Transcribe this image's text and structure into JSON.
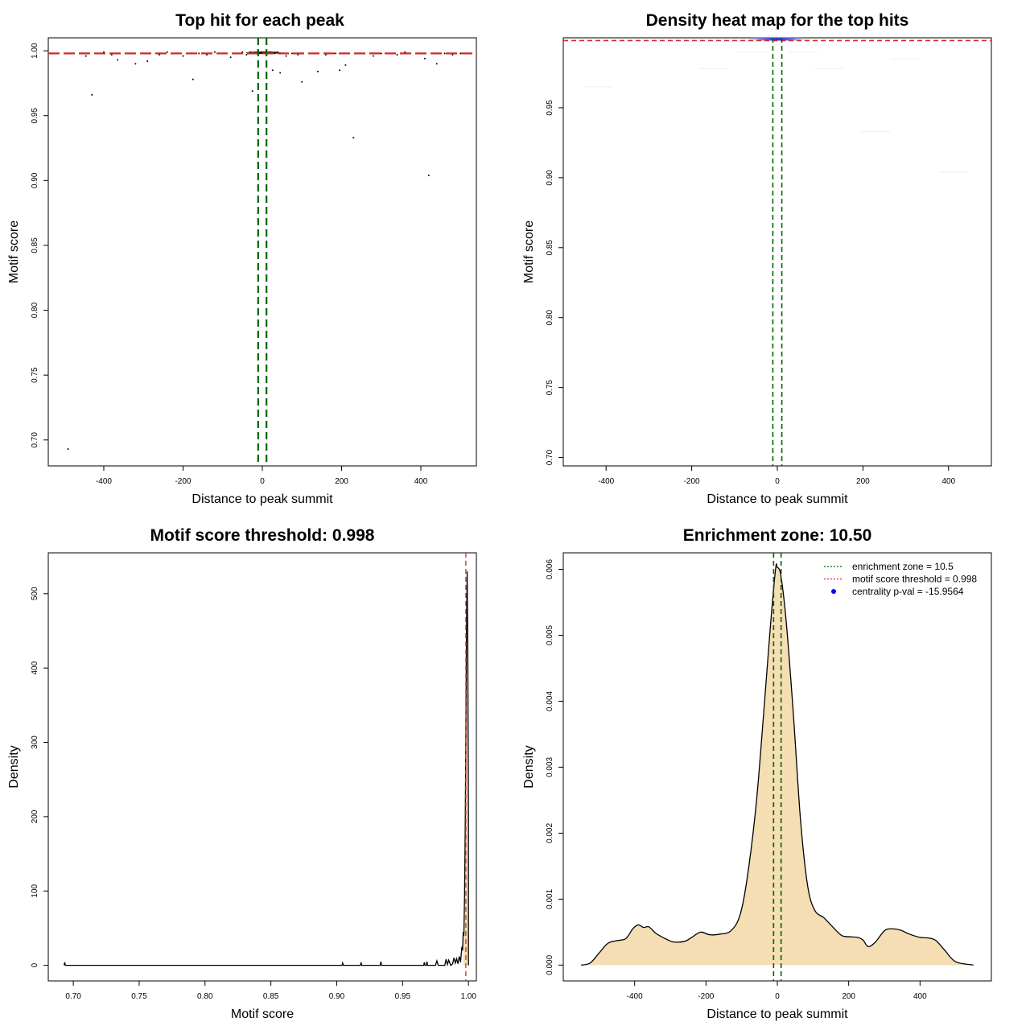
{
  "colors": {
    "enrichment": "#006400",
    "threshold": "#d62728",
    "density_fill": "#f5deb3",
    "heat_peak": "#0000ff"
  },
  "chart_data": [
    {
      "id": "top-hits",
      "type": "scatter",
      "title": "Top hit for each peak",
      "xlabel": "Distance to peak summit",
      "ylabel": "Motif score",
      "xlim": [
        -540,
        540
      ],
      "ylim": [
        0.68,
        1.01
      ],
      "xticks": [
        -400,
        -200,
        0,
        200,
        400
      ],
      "yticks": [
        0.7,
        0.75,
        0.8,
        0.85,
        0.9,
        0.95,
        1.0
      ],
      "ytick_labels": [
        "0.70",
        "0.75",
        "0.80",
        "0.85",
        "0.90",
        "0.95",
        "1.00"
      ],
      "hlines": [
        0.998
      ],
      "vlines": [
        -10.5,
        10.5
      ],
      "points": [
        {
          "x": -490,
          "y": 0.693
        },
        {
          "x": -430,
          "y": 0.966
        },
        {
          "x": -455,
          "y": 0.998
        },
        {
          "x": -445,
          "y": 0.996
        },
        {
          "x": -400,
          "y": 0.999
        },
        {
          "x": -380,
          "y": 0.997
        },
        {
          "x": -365,
          "y": 0.993
        },
        {
          "x": -340,
          "y": 0.998
        },
        {
          "x": -320,
          "y": 0.99
        },
        {
          "x": -300,
          "y": 0.998
        },
        {
          "x": -290,
          "y": 0.992
        },
        {
          "x": -260,
          "y": 0.997
        },
        {
          "x": -240,
          "y": 0.999
        },
        {
          "x": -220,
          "y": 0.998
        },
        {
          "x": -200,
          "y": 0.996
        },
        {
          "x": -175,
          "y": 0.978
        },
        {
          "x": -160,
          "y": 0.998
        },
        {
          "x": -140,
          "y": 0.997
        },
        {
          "x": -120,
          "y": 0.999
        },
        {
          "x": -100,
          "y": 0.998
        },
        {
          "x": -80,
          "y": 0.995
        },
        {
          "x": -65,
          "y": 0.998
        },
        {
          "x": -50,
          "y": 0.999
        },
        {
          "x": -40,
          "y": 0.997
        },
        {
          "x": -30,
          "y": 0.999
        },
        {
          "x": -25,
          "y": 0.969
        },
        {
          "x": -18,
          "y": 0.998
        },
        {
          "x": -12,
          "y": 0.999
        },
        {
          "x": -6,
          "y": 0.998
        },
        {
          "x": 0,
          "y": 0.999
        },
        {
          "x": 4,
          "y": 0.998
        },
        {
          "x": 8,
          "y": 0.999
        },
        {
          "x": 14,
          "y": 0.998
        },
        {
          "x": 20,
          "y": 0.999
        },
        {
          "x": 26,
          "y": 0.985
        },
        {
          "x": 32,
          "y": 0.998
        },
        {
          "x": 38,
          "y": 0.999
        },
        {
          "x": 45,
          "y": 0.983
        },
        {
          "x": 52,
          "y": 0.998
        },
        {
          "x": 60,
          "y": 0.996
        },
        {
          "x": 75,
          "y": 0.998
        },
        {
          "x": 90,
          "y": 0.997
        },
        {
          "x": 100,
          "y": 0.976
        },
        {
          "x": 120,
          "y": 0.998
        },
        {
          "x": 140,
          "y": 0.984
        },
        {
          "x": 160,
          "y": 0.997
        },
        {
          "x": 185,
          "y": 0.998
        },
        {
          "x": 195,
          "y": 0.985
        },
        {
          "x": 210,
          "y": 0.989
        },
        {
          "x": 230,
          "y": 0.933
        },
        {
          "x": 250,
          "y": 0.998
        },
        {
          "x": 280,
          "y": 0.996
        },
        {
          "x": 300,
          "y": 0.998
        },
        {
          "x": 340,
          "y": 0.997
        },
        {
          "x": 360,
          "y": 0.999
        },
        {
          "x": 390,
          "y": 0.998
        },
        {
          "x": 410,
          "y": 0.994
        },
        {
          "x": 420,
          "y": 0.904
        },
        {
          "x": 430,
          "y": 0.998
        },
        {
          "x": 440,
          "y": 0.99
        },
        {
          "x": 460,
          "y": 0.998
        },
        {
          "x": 480,
          "y": 0.997
        },
        {
          "x": 500,
          "y": 0.998
        }
      ]
    },
    {
      "id": "heat-map",
      "type": "heatmap",
      "title": "Density heat map for the top hits",
      "xlabel": "Distance to peak summit",
      "ylabel": "Motif score",
      "xlim": [
        -500,
        500
      ],
      "ylim": [
        0.694,
        1.0
      ],
      "xticks": [
        -400,
        -200,
        0,
        200,
        400
      ],
      "yticks": [
        0.7,
        0.75,
        0.8,
        0.85,
        0.9,
        0.95
      ],
      "ytick_labels": [
        "0.70",
        "0.75",
        "0.80",
        "0.85",
        "0.90",
        "0.95"
      ],
      "hlines": [
        0.998
      ],
      "vlines": [
        -10.5,
        10.5
      ],
      "hotspot": {
        "x": 0,
        "y": 0.999
      }
    },
    {
      "id": "score-density",
      "type": "area",
      "title": "Motif score threshold: 0.998",
      "xlabel": "Motif score",
      "ylabel": "Density",
      "xlim": [
        0.681,
        1.006
      ],
      "ylim": [
        -21,
        555
      ],
      "xticks": [
        0.7,
        0.75,
        0.8,
        0.85,
        0.9,
        0.95,
        1.0
      ],
      "xtick_labels": [
        "0.70",
        "0.75",
        "0.80",
        "0.85",
        "0.90",
        "0.95",
        "1.00"
      ],
      "yticks": [
        0,
        100,
        200,
        300,
        400,
        500
      ],
      "vlines": [
        0.998
      ],
      "points": [
        [
          0.693,
          0
        ],
        [
          0.6935,
          4
        ],
        [
          0.694,
          0
        ],
        [
          0.904,
          0
        ],
        [
          0.9045,
          3
        ],
        [
          0.905,
          0
        ],
        [
          0.918,
          0
        ],
        [
          0.9185,
          4
        ],
        [
          0.919,
          0
        ],
        [
          0.933,
          0
        ],
        [
          0.9335,
          5
        ],
        [
          0.934,
          0
        ],
        [
          0.966,
          0
        ],
        [
          0.9665,
          4
        ],
        [
          0.967,
          0
        ],
        [
          0.968,
          0
        ],
        [
          0.9685,
          5
        ],
        [
          0.969,
          0
        ],
        [
          0.975,
          0
        ],
        [
          0.976,
          6
        ],
        [
          0.977,
          0
        ],
        [
          0.982,
          0
        ],
        [
          0.983,
          8
        ],
        [
          0.984,
          1
        ],
        [
          0.985,
          7
        ],
        [
          0.9865,
          0
        ],
        [
          0.988,
          2
        ],
        [
          0.989,
          10
        ],
        [
          0.99,
          3
        ],
        [
          0.991,
          9
        ],
        [
          0.992,
          2
        ],
        [
          0.993,
          12
        ],
        [
          0.994,
          4
        ],
        [
          0.995,
          25
        ],
        [
          0.9955,
          20
        ],
        [
          0.996,
          45
        ],
        [
          0.9965,
          40
        ],
        [
          0.997,
          90
        ],
        [
          0.9975,
          180
        ],
        [
          0.998,
          300
        ],
        [
          0.9985,
          450
        ],
        [
          0.999,
          530
        ],
        [
          0.9995,
          420
        ],
        [
          1.0,
          200
        ],
        [
          1.0,
          0
        ]
      ]
    },
    {
      "id": "summit-density",
      "type": "area",
      "title": "Enrichment zone: 10.50",
      "xlabel": "Distance to peak summit",
      "ylabel": "Density",
      "xlim": [
        -600,
        600
      ],
      "ylim": [
        -0.00024,
        0.00625
      ],
      "xticks": [
        -400,
        -200,
        0,
        200,
        400
      ],
      "yticks": [
        0,
        0.001,
        0.002,
        0.003,
        0.004,
        0.005,
        0.006
      ],
      "ytick_labels": [
        "0.000",
        "0.001",
        "0.002",
        "0.003",
        "0.004",
        "0.005",
        "0.006"
      ],
      "vlines": [
        -10.5,
        10.5
      ],
      "points": [
        [
          -550,
          0
        ],
        [
          -525,
          3e-05
        ],
        [
          -500,
          0.00018
        ],
        [
          -475,
          0.00033
        ],
        [
          -450,
          0.00037
        ],
        [
          -425,
          0.0004
        ],
        [
          -405,
          0.00055
        ],
        [
          -390,
          0.00061
        ],
        [
          -375,
          0.00057
        ],
        [
          -360,
          0.00058
        ],
        [
          -340,
          0.00048
        ],
        [
          -310,
          0.00039
        ],
        [
          -290,
          0.00035
        ],
        [
          -260,
          0.00036
        ],
        [
          -240,
          0.00042
        ],
        [
          -215,
          0.0005
        ],
        [
          -190,
          0.00046
        ],
        [
          -160,
          0.00047
        ],
        [
          -130,
          0.00052
        ],
        [
          -105,
          0.00075
        ],
        [
          -85,
          0.0013
        ],
        [
          -60,
          0.0024
        ],
        [
          -40,
          0.0037
        ],
        [
          -20,
          0.0051
        ],
        [
          -5,
          0.006
        ],
        [
          0,
          0.00603
        ],
        [
          10,
          0.0059
        ],
        [
          25,
          0.0052
        ],
        [
          45,
          0.0038
        ],
        [
          65,
          0.0022
        ],
        [
          85,
          0.0012
        ],
        [
          105,
          0.00083
        ],
        [
          130,
          0.00072
        ],
        [
          155,
          0.00058
        ],
        [
          180,
          0.00045
        ],
        [
          200,
          0.00043
        ],
        [
          225,
          0.00042
        ],
        [
          240,
          0.00038
        ],
        [
          255,
          0.00028
        ],
        [
          275,
          0.00035
        ],
        [
          300,
          0.00052
        ],
        [
          320,
          0.00055
        ],
        [
          345,
          0.00053
        ],
        [
          370,
          0.00047
        ],
        [
          400,
          0.00042
        ],
        [
          425,
          0.00041
        ],
        [
          445,
          0.00037
        ],
        [
          470,
          0.00022
        ],
        [
          500,
          5e-05
        ],
        [
          550,
          0
        ]
      ],
      "legend": [
        {
          "label": "enrichment zone = 10.5",
          "style": "dotted-line",
          "color": "#006400"
        },
        {
          "label": "motif score threshold = 0.998",
          "style": "dotted-line",
          "color": "#d62728"
        },
        {
          "label": "centrality p-val = -15.9564",
          "style": "dot",
          "color": "#0000ff"
        }
      ],
      "legend_position": "top-right"
    }
  ]
}
